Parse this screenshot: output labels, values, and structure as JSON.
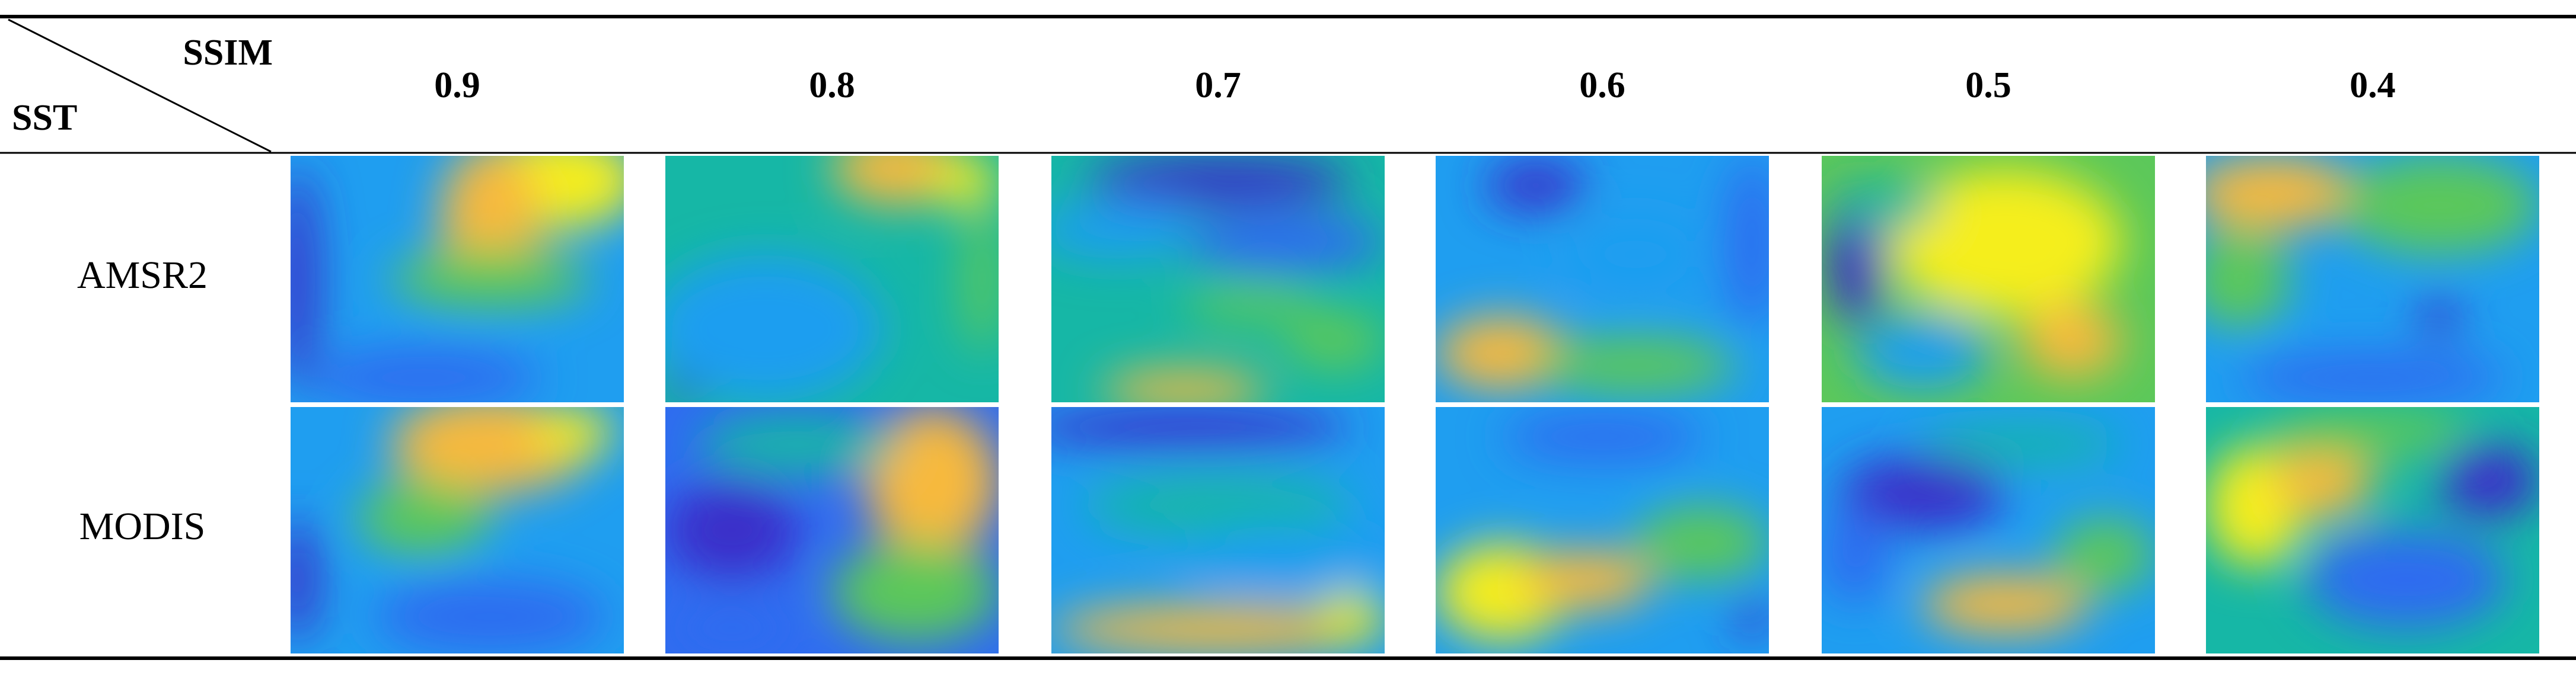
{
  "header": {
    "column_label": "SSIM",
    "row_label": "SST",
    "columns": [
      "0.9",
      "0.8",
      "0.7",
      "0.6",
      "0.5",
      "0.4"
    ]
  },
  "rows": [
    {
      "label": "AMSR2"
    },
    {
      "label": "MODIS"
    }
  ]
}
